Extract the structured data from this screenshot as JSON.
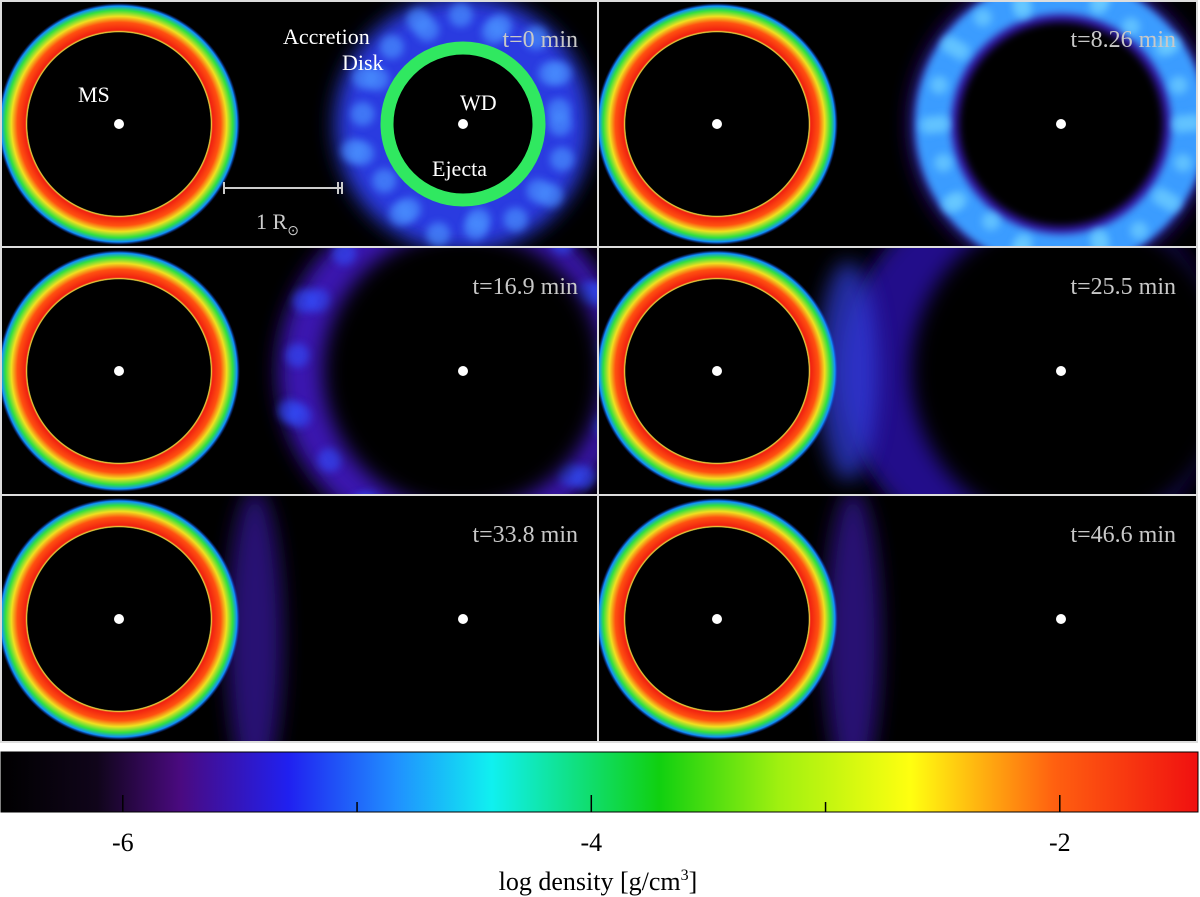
{
  "panels": [
    {
      "time": "t=0 min"
    },
    {
      "time": "t=8.26 min"
    },
    {
      "time": "t=16.9 min"
    },
    {
      "time": "t=25.5 min"
    },
    {
      "time": "t=33.8 min"
    },
    {
      "time": "t=46.6 min"
    }
  ],
  "annotations": {
    "ms": "MS",
    "wd": "WD",
    "accretion": [
      "Accretion",
      "Disk"
    ],
    "ejecta": "Ejecta",
    "scale_bar": {
      "text": "1 R",
      "subscript": "⊙"
    }
  },
  "colorbar": {
    "label": "log density [g/cm",
    "label_sup": "3",
    "label_end": "]",
    "xlim": [
      -6.52,
      -1.41
    ],
    "xticks": [
      -6,
      -4,
      -2
    ],
    "minor_ticks": [
      -5,
      -3
    ]
  }
}
